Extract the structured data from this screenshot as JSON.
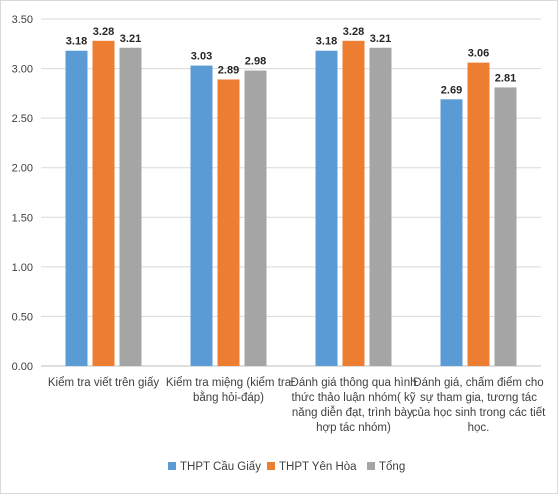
{
  "chart_data": {
    "type": "bar",
    "categories": [
      [
        "Kiểm tra viết trên giấy"
      ],
      [
        "Kiểm tra miệng (kiểm tra",
        "bằng hỏi-đáp)"
      ],
      [
        "Đánh giá thông qua hình",
        "thức thảo luận nhóm( kỹ",
        "năng diễn đạt, trình bày,",
        "hợp tác nhóm)"
      ],
      [
        "Đánh giá, chấm điểm cho",
        "sự tham gia, tương tác",
        "của học sinh trong các tiết",
        "học."
      ]
    ],
    "series": [
      {
        "name": "THPT Cầu Giấy",
        "color": "#5b9bd5",
        "values": [
          3.18,
          3.03,
          3.18,
          2.69
        ],
        "labels": [
          "3.18",
          "3.03",
          "3.18",
          "2.69"
        ]
      },
      {
        "name": "THPT Yên Hòa",
        "color": "#ed7d31",
        "values": [
          3.28,
          2.89,
          3.28,
          3.06
        ],
        "labels": [
          "3.28",
          "2.89",
          "3.28",
          "3.06"
        ]
      },
      {
        "name": "Tổng",
        "color": "#a5a5a5",
        "values": [
          3.21,
          2.98,
          3.21,
          2.81
        ],
        "labels": [
          "3.21",
          "2.98",
          "3.21",
          "2.81"
        ]
      }
    ],
    "ylim": [
      0,
      3.5
    ],
    "yticks": [
      "0.00",
      "0.50",
      "1.00",
      "1.50",
      "2.00",
      "2.50",
      "3.00",
      "3.50"
    ],
    "grid": true,
    "legend_position": "bottom"
  }
}
